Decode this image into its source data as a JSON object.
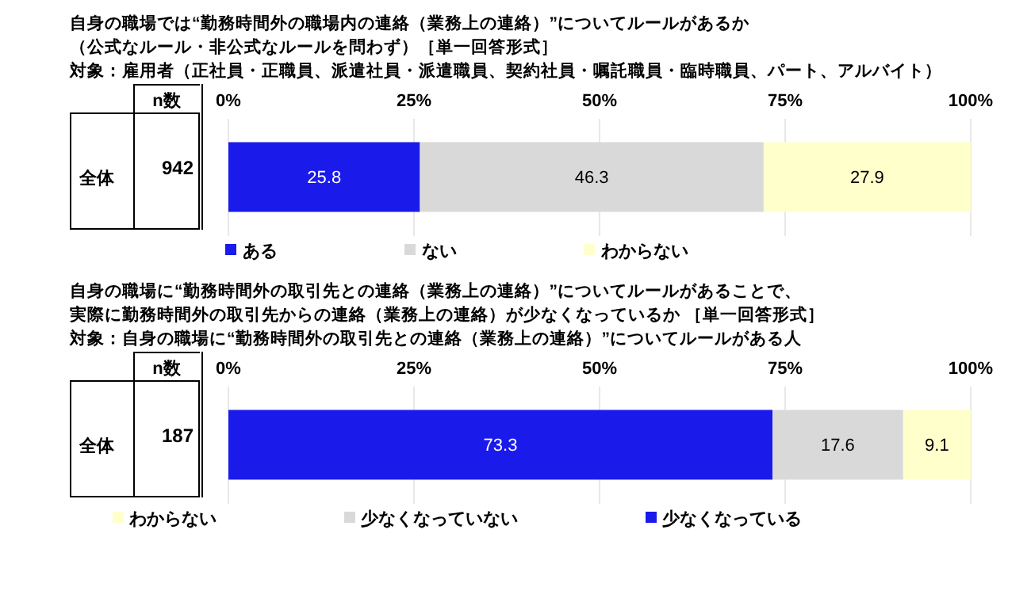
{
  "chart_data": [
    {
      "type": "bar",
      "orientation": "horizontal",
      "stacked": true,
      "title": "自身の職場では“勤務時間外の職場内の連絡（業務上の連絡）”についてルールがあるか",
      "subtitle": "（公式なルール・非公式なルールを問わず）［単一回答形式］",
      "categories": [
        "全体"
      ],
      "series": [
        {
          "name": "ある",
          "color": "#1a1aeb",
          "values": [
            25.8
          ]
        },
        {
          "name": "ない",
          "color": "#d9d9d9",
          "values": [
            46.3
          ]
        },
        {
          "name": "わからない",
          "color": "#ffffcc",
          "values": [
            27.9
          ]
        }
      ],
      "xlim": [
        0,
        100
      ],
      "xticks": [
        {
          "value": 0,
          "label": "0%"
        },
        {
          "value": 25,
          "label": "25%"
        },
        {
          "value": 50,
          "label": "50%"
        },
        {
          "value": 75,
          "label": "75%"
        },
        {
          "value": 100,
          "label": "100%"
        }
      ],
      "annotations": [
        "対象：雇用者（正社員・正職員、派遣社員・派遣職員、契約社員・嘱託職員・臨時職員、パート、アルバイト）",
        "n数",
        "942"
      ],
      "data_labels": true,
      "grid": "x",
      "legend": "bottom"
    },
    {
      "type": "bar",
      "orientation": "horizontal",
      "stacked": true,
      "title": "自身の職場に“勤務時間外の取引先との連絡（業務上の連絡）”についてルールがあることで、",
      "subtitle": "実際に勤務時間外の取引先からの連絡（業務上の連絡）が少なくなっているか ［単一回答形式］",
      "categories": [
        "全体"
      ],
      "series": [
        {
          "name": "少なくなっている",
          "color": "#1a1aeb",
          "values": [
            73.3
          ]
        },
        {
          "name": "少なくなっていない",
          "color": "#d9d9d9",
          "values": [
            17.6
          ]
        },
        {
          "name": "わからない",
          "color": "#ffffcc",
          "values": [
            9.1
          ]
        }
      ],
      "xlim": [
        0,
        100
      ],
      "xticks": [
        {
          "value": 0,
          "label": "0%"
        },
        {
          "value": 25,
          "label": "25%"
        },
        {
          "value": 50,
          "label": "50%"
        },
        {
          "value": 75,
          "label": "75%"
        },
        {
          "value": 100,
          "label": "100%"
        }
      ],
      "annotations": [
        "対象：自身の職場に“勤務時間外の取引先との連絡（業務上の連絡）”についてルールがある人",
        "n数",
        "187"
      ],
      "data_labels": true,
      "grid": "x",
      "legend": "bottom"
    }
  ]
}
